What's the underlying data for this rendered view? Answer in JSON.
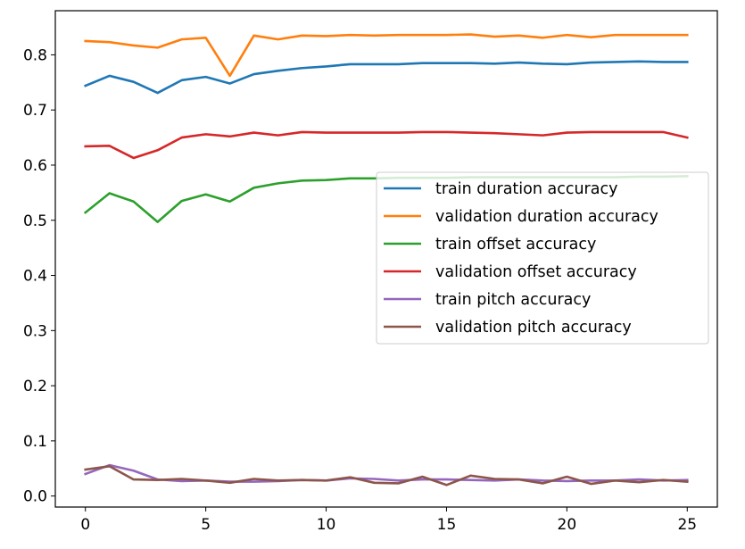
{
  "chart_data": {
    "type": "line",
    "title": "",
    "xlabel": "",
    "ylabel": "",
    "xlim": [
      -1.25,
      26.25
    ],
    "ylim": [
      -0.02,
      0.88
    ],
    "xticks": [
      0,
      5,
      10,
      15,
      20,
      25
    ],
    "yticks": [
      0.0,
      0.1,
      0.2,
      0.3,
      0.4,
      0.5,
      0.6,
      0.7,
      0.8
    ],
    "grid": false,
    "legend_position": "center-right",
    "x": [
      0,
      1,
      2,
      3,
      4,
      5,
      6,
      7,
      8,
      9,
      10,
      11,
      12,
      13,
      14,
      15,
      16,
      17,
      18,
      19,
      20,
      21,
      22,
      23,
      24,
      25
    ],
    "series": [
      {
        "name": "train duration accuracy",
        "color": "#1f77b4",
        "values": [
          0.744,
          0.762,
          0.751,
          0.731,
          0.754,
          0.76,
          0.748,
          0.765,
          0.771,
          0.776,
          0.779,
          0.783,
          0.783,
          0.783,
          0.785,
          0.785,
          0.785,
          0.784,
          0.786,
          0.784,
          0.783,
          0.786,
          0.787,
          0.788,
          0.787,
          0.787
        ]
      },
      {
        "name": "validation duration accuracy",
        "color": "#ff7f0e",
        "values": [
          0.825,
          0.823,
          0.817,
          0.813,
          0.828,
          0.831,
          0.762,
          0.835,
          0.828,
          0.835,
          0.834,
          0.836,
          0.835,
          0.836,
          0.836,
          0.836,
          0.837,
          0.833,
          0.835,
          0.831,
          0.836,
          0.832,
          0.836,
          0.836,
          0.836,
          0.836
        ]
      },
      {
        "name": "train offset accuracy",
        "color": "#2ca02c",
        "values": [
          0.514,
          0.549,
          0.534,
          0.497,
          0.535,
          0.547,
          0.534,
          0.559,
          0.567,
          0.572,
          0.573,
          0.576,
          0.576,
          0.577,
          0.577,
          0.577,
          0.578,
          0.578,
          0.578,
          0.578,
          0.578,
          0.578,
          0.578,
          0.579,
          0.579,
          0.58
        ]
      },
      {
        "name": "validation offset accuracy",
        "color": "#d62728",
        "values": [
          0.634,
          0.635,
          0.613,
          0.627,
          0.65,
          0.656,
          0.652,
          0.659,
          0.654,
          0.66,
          0.659,
          0.659,
          0.659,
          0.659,
          0.66,
          0.66,
          0.659,
          0.658,
          0.656,
          0.654,
          0.659,
          0.66,
          0.66,
          0.66,
          0.66,
          0.65
        ]
      },
      {
        "name": "train pitch accuracy",
        "color": "#9467bd",
        "values": [
          0.04,
          0.056,
          0.046,
          0.03,
          0.027,
          0.028,
          0.026,
          0.026,
          0.027,
          0.029,
          0.028,
          0.032,
          0.031,
          0.028,
          0.03,
          0.03,
          0.029,
          0.028,
          0.03,
          0.028,
          0.027,
          0.028,
          0.028,
          0.03,
          0.028,
          0.029
        ]
      },
      {
        "name": "validation pitch accuracy",
        "color": "#8c564b",
        "values": [
          0.048,
          0.054,
          0.03,
          0.029,
          0.031,
          0.028,
          0.024,
          0.031,
          0.028,
          0.029,
          0.028,
          0.034,
          0.024,
          0.023,
          0.035,
          0.02,
          0.037,
          0.031,
          0.03,
          0.023,
          0.035,
          0.022,
          0.028,
          0.025,
          0.029,
          0.026
        ]
      }
    ]
  }
}
